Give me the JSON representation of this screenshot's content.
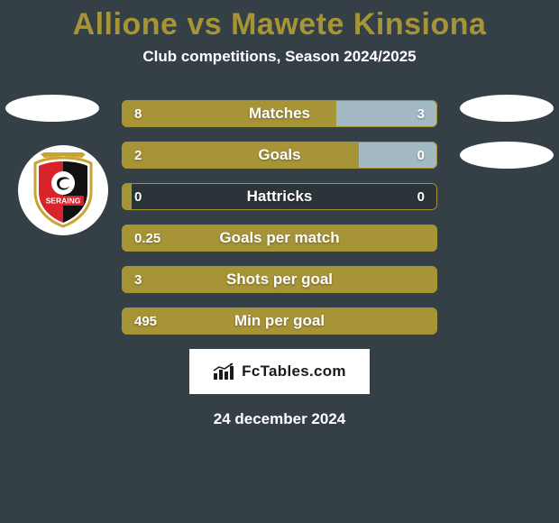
{
  "background_color": "#354046",
  "title": {
    "text": "Allione vs Mawete Kinsiona",
    "color": "#a79436",
    "fontsize": 34
  },
  "subtitle": {
    "text": "Club competitions, Season 2024/2025",
    "color": "#ffffff",
    "fontsize": 17
  },
  "oval_color": "#ffffff",
  "crest": {
    "bg": "#ffffff",
    "shield_border": "#c9a430",
    "shield_left": "#d8232a",
    "shield_right": "#111111",
    "banner_text": "SERAING",
    "banner_bg": "#d8232a",
    "banner_text_color": "#ffffff"
  },
  "bar_bg": "#2b3438",
  "bar_text_color": "#ffffff",
  "stats": [
    {
      "label": "Matches",
      "left_val": "8",
      "right_val": "3",
      "left_color": "#a79436",
      "left_pct": 68,
      "right_color": "#a3b9c4",
      "right_pct": 32
    },
    {
      "label": "Goals",
      "left_val": "2",
      "right_val": "0",
      "left_color": "#a79436",
      "left_pct": 75,
      "right_color": "#a3b9c4",
      "right_pct": 25
    },
    {
      "label": "Hattricks",
      "left_val": "0",
      "right_val": "0",
      "left_color": "#a79436",
      "left_pct": 3,
      "right_color": "#a3b9c4",
      "right_pct": 0
    },
    {
      "label": "Goals per match",
      "left_val": "0.25",
      "right_val": "",
      "left_color": "#a79436",
      "left_pct": 100,
      "right_color": "#a3b9c4",
      "right_pct": 0
    },
    {
      "label": "Shots per goal",
      "left_val": "3",
      "right_val": "",
      "left_color": "#a79436",
      "left_pct": 100,
      "right_color": "#a3b9c4",
      "right_pct": 0
    },
    {
      "label": "Min per goal",
      "left_val": "495",
      "right_val": "",
      "left_color": "#a79436",
      "left_pct": 100,
      "right_color": "#a3b9c4",
      "right_pct": 0
    }
  ],
  "watermark": {
    "text": "FcTables.com",
    "bg": "#ffffff",
    "color": "#1b1b1b"
  },
  "footer_date": {
    "text": "24 december 2024",
    "color": "#ffffff"
  }
}
